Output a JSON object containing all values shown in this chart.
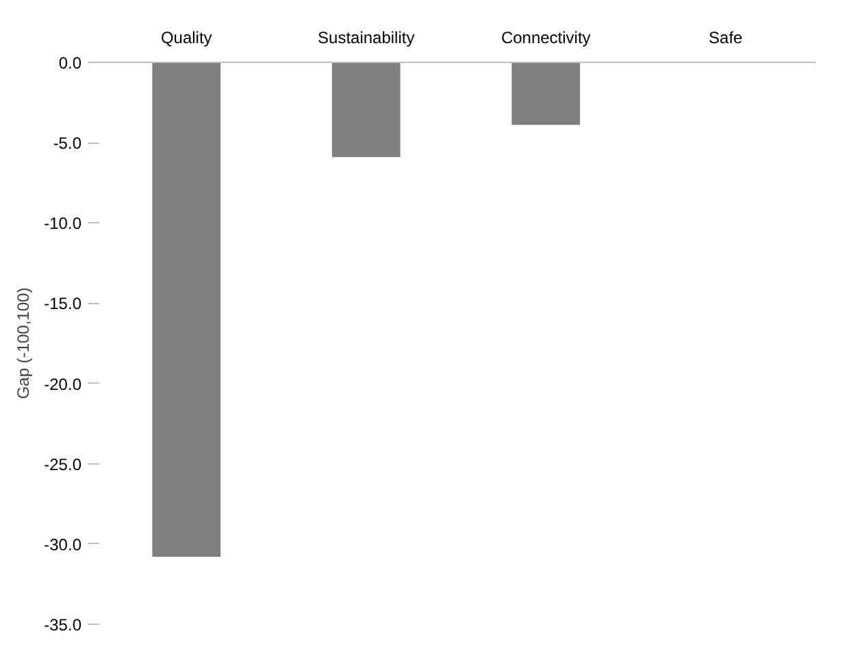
{
  "chart_data": {
    "type": "bar",
    "ylabel": "Gap (-100,100)",
    "categories": [
      "Quality",
      "Sustainability",
      "Connectivity",
      "Safe"
    ],
    "values": [
      -30.8,
      -5.9,
      -3.9,
      0
    ],
    "color": "#7f7f7f",
    "ylim": [
      -35,
      0
    ],
    "yticks": [
      {
        "value": 0,
        "label": "0.0"
      },
      {
        "value": -5,
        "label": "-5.0"
      },
      {
        "value": -10,
        "label": "-10.0"
      },
      {
        "value": -15,
        "label": "-15.0"
      },
      {
        "value": -20,
        "label": "-20.0"
      },
      {
        "value": -25,
        "label": "-25.0"
      },
      {
        "value": -30,
        "label": "-30.0"
      },
      {
        "value": -35,
        "label": "-35.0"
      }
    ]
  }
}
